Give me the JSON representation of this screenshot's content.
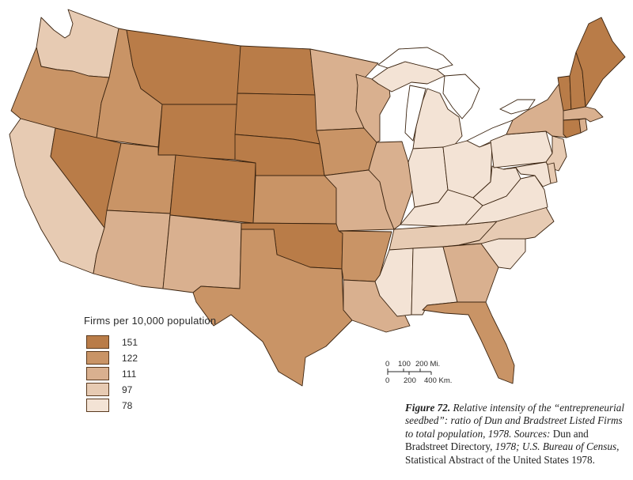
{
  "legend": {
    "title": "Firms per 10,000 population",
    "classes": [
      {
        "label": "151",
        "color": "#b97c48"
      },
      {
        "label": "122",
        "color": "#c99466"
      },
      {
        "label": "111",
        "color": "#d9b08f"
      },
      {
        "label": "97",
        "color": "#e7cbb3"
      },
      {
        "label": "78",
        "color": "#f3e3d5"
      }
    ]
  },
  "scale": {
    "miles": [
      "0",
      "100",
      "200 Mi."
    ],
    "km": [
      "0",
      "200",
      "400 Km."
    ]
  },
  "caption": {
    "figure_label": "Figure 72.",
    "italic_part1": "Relative intensity of the “entrepreneurial seedbed”: ratio of Dun and Bradstreet Listed Firms to total population, 1978. Sources:",
    "plain_part1": "Dun and Bradstreet Directory,",
    "italic_part2": "1978; U.S. Bureau of Census,",
    "plain_part2": "Statistical Abstract of the United States 1978."
  },
  "states": {
    "WA": 3,
    "OR": 1,
    "CA": 3,
    "ID": 1,
    "NV": 0,
    "MT": 0,
    "WY": 0,
    "UT": 1,
    "AZ": 2,
    "CO": 0,
    "NM": 2,
    "ND": 0,
    "SD": 0,
    "NE": 0,
    "KS": 1,
    "OK": 0,
    "TX": 1,
    "MN": 2,
    "IA": 1,
    "MO": 2,
    "AR": 1,
    "LA": 2,
    "WI": 2,
    "IL": 2,
    "MI": 4,
    "IN": 4,
    "OH": 4,
    "KY": 4,
    "TN": 3,
    "MS": 4,
    "AL": 4,
    "GA": 2,
    "FL": 1,
    "SC": 4,
    "NC": 3,
    "VA": 4,
    "WV": 4,
    "PA": 4,
    "NY": 2,
    "NJ": 3,
    "MD": 4,
    "DE": 3,
    "ME": 0,
    "NH": 0,
    "VT": 0,
    "MA": 2,
    "CT": 0,
    "RI": 2
  }
}
